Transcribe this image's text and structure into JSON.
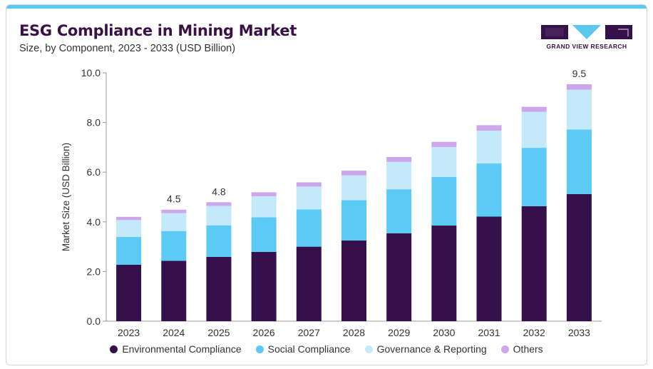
{
  "header": {
    "title": "ESG Compliance in Mining Market",
    "subtitle": "Size, by Component, 2023 - 2033 (USD Billion)",
    "logo_text": "GRAND VIEW RESEARCH"
  },
  "colors": {
    "accent_bar": "#5bc8f0",
    "title": "#3a1046"
  },
  "chart_data": {
    "type": "bar",
    "stacked": true,
    "categories": [
      "2023",
      "2024",
      "2025",
      "2026",
      "2027",
      "2028",
      "2029",
      "2030",
      "2031",
      "2032",
      "2033"
    ],
    "series": [
      {
        "name": "Environmental Compliance",
        "color": "#36104a",
        "values": [
          2.27,
          2.43,
          2.59,
          2.79,
          3.0,
          3.25,
          3.54,
          3.85,
          4.21,
          4.63,
          5.12
        ]
      },
      {
        "name": "Social Compliance",
        "color": "#5bcbf5",
        "values": [
          1.12,
          1.2,
          1.27,
          1.39,
          1.5,
          1.62,
          1.77,
          1.96,
          2.14,
          2.35,
          2.6
        ]
      },
      {
        "name": "Governance & Reporting",
        "color": "#c3e9fb",
        "values": [
          0.68,
          0.72,
          0.78,
          0.85,
          0.92,
          1.0,
          1.1,
          1.2,
          1.32,
          1.45,
          1.6
        ]
      },
      {
        "name": "Others",
        "color": "#cda6eb",
        "values": [
          0.13,
          0.14,
          0.15,
          0.16,
          0.17,
          0.19,
          0.2,
          0.21,
          0.22,
          0.2,
          0.22
        ]
      }
    ],
    "total_labels": [
      {
        "category": "2024",
        "text": "4.5"
      },
      {
        "category": "2025",
        "text": "4.8"
      },
      {
        "category": "2033",
        "text": "9.5"
      }
    ],
    "ylabel": "Market Size (USD Billion)",
    "ylim": [
      0,
      10
    ],
    "yticks": [
      "0.0",
      "2.0",
      "4.0",
      "6.0",
      "8.0",
      "10.0"
    ],
    "grid": false,
    "legend_position": "bottom"
  }
}
